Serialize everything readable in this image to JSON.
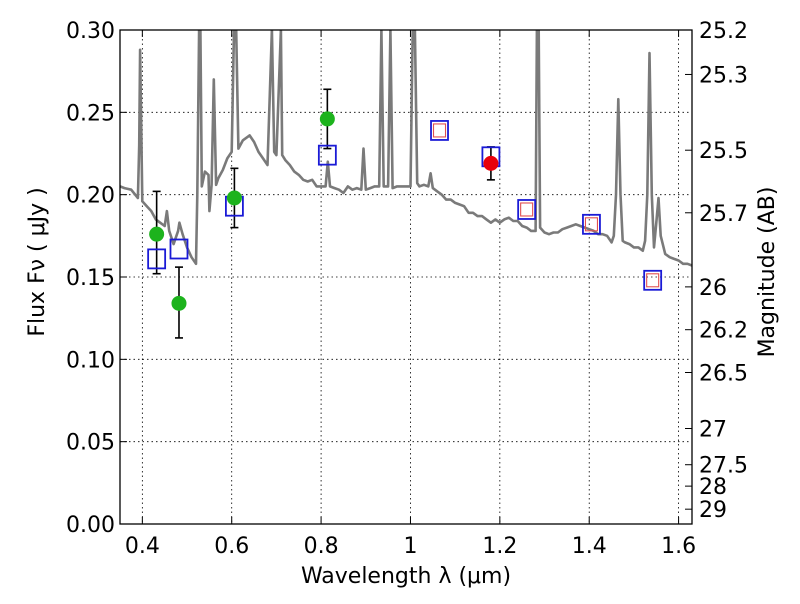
{
  "chart_data": {
    "type": "scatter",
    "xlabel": "Wavelength  λ (μm)",
    "ylabel": "Flux  Fν  ( μJy )",
    "ylabel_right": "Magnitude (AB)",
    "xlim": [
      0.35,
      1.63
    ],
    "ylim": [
      0.0,
      0.3
    ],
    "grid": true,
    "x_ticks": [
      0.4,
      0.6,
      0.8,
      1.0,
      1.2,
      1.4,
      1.6
    ],
    "x_tick_labels": [
      "0.4",
      "0.6",
      "0.8",
      "1",
      "1.2",
      "1.4",
      "1.6"
    ],
    "y_ticks": [
      0.0,
      0.05,
      0.1,
      0.15,
      0.2,
      0.25,
      0.3
    ],
    "y_tick_labels": [
      "0.00",
      "0.05",
      "0.10",
      "0.15",
      "0.20",
      "0.25",
      "0.30"
    ],
    "right_ticks": [
      {
        "flux": 0.3,
        "label": "25.2"
      },
      {
        "flux": 0.273,
        "label": "25.3"
      },
      {
        "flux": 0.227,
        "label": "25.5"
      },
      {
        "flux": 0.189,
        "label": "25.7"
      },
      {
        "flux": 0.144,
        "label": "26"
      },
      {
        "flux": 0.118,
        "label": "26.2"
      },
      {
        "flux": 0.092,
        "label": "26.5"
      },
      {
        "flux": 0.058,
        "label": "27"
      },
      {
        "flux": 0.036,
        "label": "27.5"
      },
      {
        "flux": 0.023,
        "label": "28"
      },
      {
        "flux": 0.009,
        "label": "29"
      }
    ],
    "colors": {
      "sed": "#7a7a7a",
      "observed_green": "#1db31d",
      "observed_red": "#e8000b",
      "model_box": "#1a1ad6",
      "model_inner": "#e05050",
      "errorbar": "#000000"
    },
    "series": [
      {
        "kind": "line",
        "points": [
          [
            0.35,
            0.205
          ],
          [
            0.36,
            0.204
          ],
          [
            0.375,
            0.203
          ],
          [
            0.39,
            0.198
          ],
          [
            0.393,
            0.23
          ],
          [
            0.395,
            0.288
          ],
          [
            0.398,
            0.23
          ],
          [
            0.4,
            0.196
          ],
          [
            0.41,
            0.193
          ],
          [
            0.42,
            0.19
          ],
          [
            0.43,
            0.185
          ],
          [
            0.44,
            0.183
          ],
          [
            0.45,
            0.181
          ],
          [
            0.455,
            0.19
          ],
          [
            0.46,
            0.178
          ],
          [
            0.47,
            0.17
          ],
          [
            0.48,
            0.178
          ],
          [
            0.483,
            0.183
          ],
          [
            0.49,
            0.176
          ],
          [
            0.5,
            0.168
          ],
          [
            0.51,
            0.162
          ],
          [
            0.52,
            0.158
          ],
          [
            0.523,
            0.2
          ],
          [
            0.527,
            0.3
          ],
          [
            0.53,
            0.3
          ],
          [
            0.533,
            0.205
          ],
          [
            0.54,
            0.214
          ],
          [
            0.548,
            0.212
          ],
          [
            0.55,
            0.19
          ],
          [
            0.555,
            0.206
          ],
          [
            0.56,
            0.27
          ],
          [
            0.565,
            0.206
          ],
          [
            0.57,
            0.21
          ],
          [
            0.58,
            0.215
          ],
          [
            0.59,
            0.222
          ],
          [
            0.6,
            0.226
          ],
          [
            0.605,
            0.3
          ],
          [
            0.61,
            0.3
          ],
          [
            0.615,
            0.228
          ],
          [
            0.625,
            0.233
          ],
          [
            0.64,
            0.236
          ],
          [
            0.65,
            0.232
          ],
          [
            0.66,
            0.226
          ],
          [
            0.67,
            0.222
          ],
          [
            0.68,
            0.218
          ],
          [
            0.69,
            0.3
          ],
          [
            0.695,
            0.226
          ],
          [
            0.7,
            0.224
          ],
          [
            0.71,
            0.3
          ],
          [
            0.713,
            0.224
          ],
          [
            0.72,
            0.221
          ],
          [
            0.73,
            0.218
          ],
          [
            0.74,
            0.214
          ],
          [
            0.75,
            0.212
          ],
          [
            0.76,
            0.209
          ],
          [
            0.77,
            0.208
          ],
          [
            0.78,
            0.209
          ],
          [
            0.79,
            0.205
          ],
          [
            0.8,
            0.205
          ],
          [
            0.81,
            0.205
          ],
          [
            0.815,
            0.22
          ],
          [
            0.82,
            0.205
          ],
          [
            0.83,
            0.204
          ],
          [
            0.84,
            0.203
          ],
          [
            0.85,
            0.201
          ],
          [
            0.86,
            0.205
          ],
          [
            0.87,
            0.203
          ],
          [
            0.88,
            0.204
          ],
          [
            0.89,
            0.203
          ],
          [
            0.895,
            0.228
          ],
          [
            0.9,
            0.203
          ],
          [
            0.91,
            0.204
          ],
          [
            0.92,
            0.205
          ],
          [
            0.93,
            0.205
          ],
          [
            0.935,
            0.3
          ],
          [
            0.94,
            0.205
          ],
          [
            0.95,
            0.205
          ],
          [
            0.955,
            0.3
          ],
          [
            0.96,
            0.204
          ],
          [
            0.97,
            0.205
          ],
          [
            0.98,
            0.205
          ],
          [
            0.99,
            0.205
          ],
          [
            1.0,
            0.205
          ],
          [
            1.005,
            0.3
          ],
          [
            1.01,
            0.3
          ],
          [
            1.015,
            0.207
          ],
          [
            1.02,
            0.205
          ],
          [
            1.03,
            0.206
          ],
          [
            1.04,
            0.205
          ],
          [
            1.045,
            0.213
          ],
          [
            1.05,
            0.204
          ],
          [
            1.06,
            0.202
          ],
          [
            1.07,
            0.2
          ],
          [
            1.08,
            0.197
          ],
          [
            1.09,
            0.197
          ],
          [
            1.1,
            0.195
          ],
          [
            1.11,
            0.194
          ],
          [
            1.12,
            0.193
          ],
          [
            1.13,
            0.189
          ],
          [
            1.14,
            0.189
          ],
          [
            1.15,
            0.187
          ],
          [
            1.16,
            0.187
          ],
          [
            1.17,
            0.185
          ],
          [
            1.18,
            0.183
          ],
          [
            1.19,
            0.185
          ],
          [
            1.2,
            0.183
          ],
          [
            1.21,
            0.185
          ],
          [
            1.22,
            0.186
          ],
          [
            1.23,
            0.184
          ],
          [
            1.24,
            0.184
          ],
          [
            1.25,
            0.181
          ],
          [
            1.26,
            0.18
          ],
          [
            1.27,
            0.178
          ],
          [
            1.28,
            0.178
          ],
          [
            1.283,
            0.3
          ],
          [
            1.287,
            0.3
          ],
          [
            1.29,
            0.18
          ],
          [
            1.3,
            0.177
          ],
          [
            1.31,
            0.176
          ],
          [
            1.32,
            0.177
          ],
          [
            1.33,
            0.177
          ],
          [
            1.34,
            0.179
          ],
          [
            1.35,
            0.18
          ],
          [
            1.36,
            0.181
          ],
          [
            1.37,
            0.182
          ],
          [
            1.38,
            0.181
          ],
          [
            1.39,
            0.18
          ],
          [
            1.4,
            0.179
          ],
          [
            1.41,
            0.178
          ],
          [
            1.42,
            0.176
          ],
          [
            1.43,
            0.176
          ],
          [
            1.44,
            0.175
          ],
          [
            1.45,
            0.171
          ],
          [
            1.455,
            0.175
          ],
          [
            1.46,
            0.2
          ],
          [
            1.465,
            0.258
          ],
          [
            1.47,
            0.2
          ],
          [
            1.475,
            0.172
          ],
          [
            1.48,
            0.171
          ],
          [
            1.49,
            0.17
          ],
          [
            1.5,
            0.168
          ],
          [
            1.51,
            0.168
          ],
          [
            1.52,
            0.166
          ],
          [
            1.525,
            0.172
          ],
          [
            1.53,
            0.2
          ],
          [
            1.535,
            0.286
          ],
          [
            1.54,
            0.2
          ],
          [
            1.545,
            0.168
          ],
          [
            1.55,
            0.183
          ],
          [
            1.555,
            0.198
          ],
          [
            1.56,
            0.175
          ],
          [
            1.57,
            0.164
          ],
          [
            1.58,
            0.162
          ],
          [
            1.59,
            0.161
          ],
          [
            1.6,
            0.16
          ],
          [
            1.61,
            0.158
          ],
          [
            1.62,
            0.158
          ],
          [
            1.63,
            0.157
          ]
        ]
      },
      {
        "kind": "model_box",
        "points": [
          {
            "x": 0.432,
            "y": 0.161
          },
          {
            "x": 0.482,
            "y": 0.167
          },
          {
            "x": 0.606,
            "y": 0.193
          },
          {
            "x": 0.814,
            "y": 0.224
          },
          {
            "x": 1.065,
            "y": 0.239,
            "inner": true
          },
          {
            "x": 1.18,
            "y": 0.223
          },
          {
            "x": 1.26,
            "y": 0.191,
            "inner": true
          },
          {
            "x": 1.405,
            "y": 0.182,
            "inner": true
          },
          {
            "x": 1.542,
            "y": 0.148,
            "inner": true
          }
        ]
      },
      {
        "kind": "observed",
        "points": [
          {
            "x": 0.432,
            "y": 0.176,
            "err_lo": 0.024,
            "err_hi": 0.026,
            "color": "green"
          },
          {
            "x": 0.482,
            "y": 0.134,
            "err_lo": 0.021,
            "err_hi": 0.022,
            "color": "green"
          },
          {
            "x": 0.606,
            "y": 0.198,
            "err_lo": 0.018,
            "err_hi": 0.018,
            "color": "green"
          },
          {
            "x": 0.814,
            "y": 0.246,
            "err_lo": 0.018,
            "err_hi": 0.018,
            "color": "green"
          },
          {
            "x": 1.18,
            "y": 0.219,
            "err_lo": 0.01,
            "err_hi": 0.01,
            "color": "red"
          }
        ]
      }
    ]
  }
}
